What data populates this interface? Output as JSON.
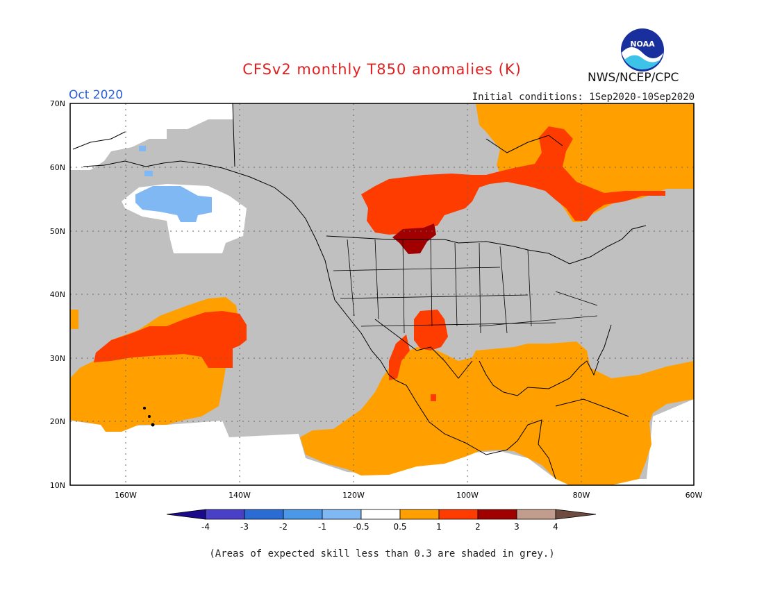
{
  "header": {
    "title": "CFSv2 monthly T850 anomalies (K)",
    "month": "Oct 2020",
    "agency": "NWS/NCEP/CPC",
    "logo_text": "NOAA",
    "initial_conditions": "Initial conditions: 1Sep2020-10Sep2020"
  },
  "map": {
    "lat_labels": [
      "70N",
      "60N",
      "50N",
      "40N",
      "30N",
      "20N",
      "10N"
    ],
    "lon_labels": [
      "160W",
      "140W",
      "120W",
      "100W",
      "80W",
      "60W"
    ],
    "grey_color": "#c0c0c0"
  },
  "legend": {
    "tick_labels": [
      "-4",
      "-3",
      "-2",
      "-1",
      "-0.5",
      "0.5",
      "1",
      "2",
      "3",
      "4"
    ],
    "colors": [
      "#1c0a8c",
      "#4a3fc7",
      "#2a6bd4",
      "#4b97e8",
      "#7fb8f3",
      "#ffffff",
      "#ff9f00",
      "#ff3c00",
      "#a00000",
      "#c29c8c",
      "#6e4b3e"
    ]
  },
  "footnote": "(Areas of expected skill less than 0.3 are shaded in grey.)"
}
